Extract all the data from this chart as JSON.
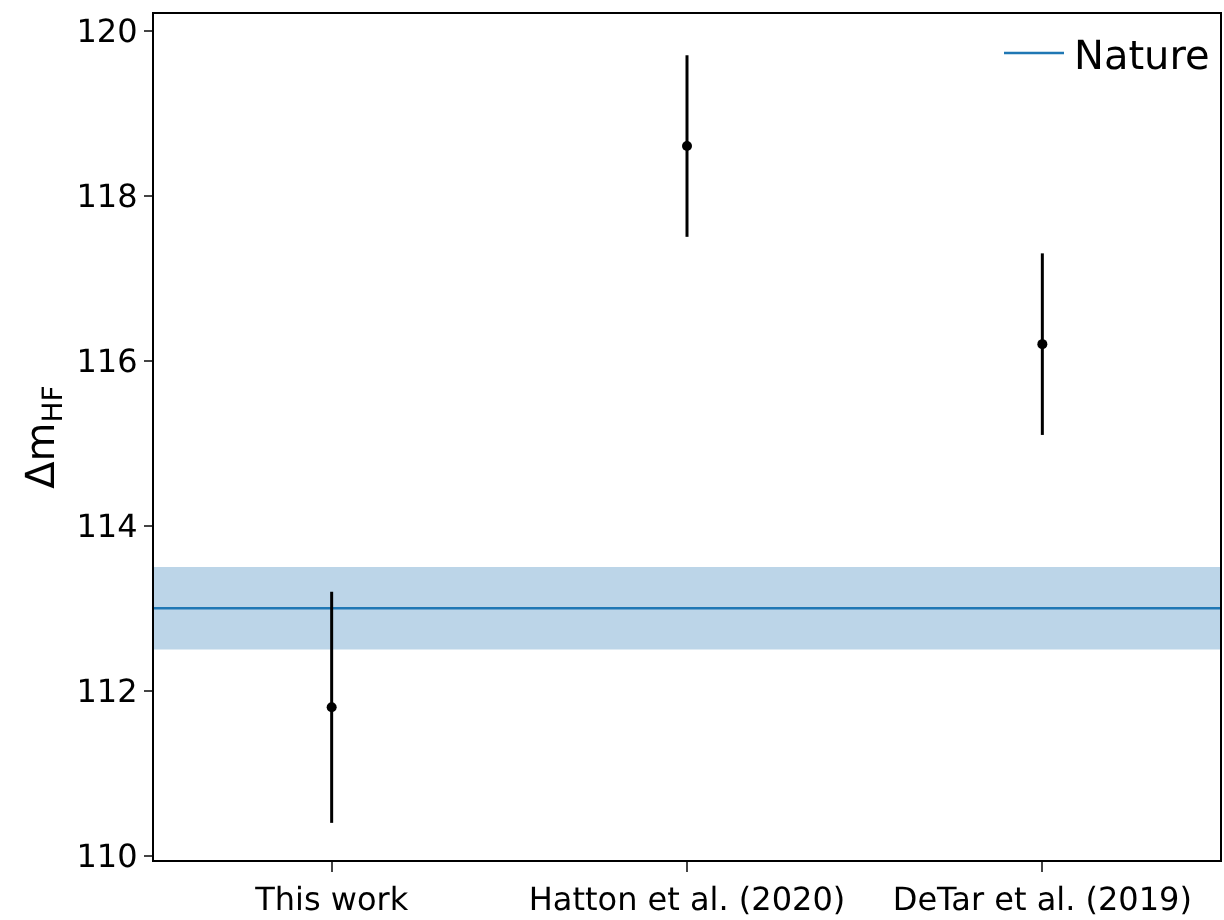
{
  "chart_data": {
    "type": "scatter",
    "ylabel": "Δm$_{HF}$",
    "categories": [
      "This work",
      "Hatton et al. (2020)",
      "DeTar et al. (2019)"
    ],
    "series": [
      {
        "color": "#000000",
        "values": [
          111.8,
          118.6,
          116.2
        ],
        "errors": [
          1.4,
          1.1,
          1.1
        ]
      }
    ],
    "ylim": [
      109.95,
      120.2
    ],
    "yticks": [
      110,
      112,
      114,
      116,
      118,
      120
    ],
    "ref_lines": [
      {
        "axis": "y",
        "value": 113.0,
        "label": "Nature",
        "color": "#1f77b4"
      }
    ],
    "bands": [
      {
        "axis": "y",
        "from": 112.5,
        "to": 113.5,
        "color": "#bcd5e8"
      }
    ],
    "marker": "circle",
    "grid": false,
    "legend": "top right"
  }
}
